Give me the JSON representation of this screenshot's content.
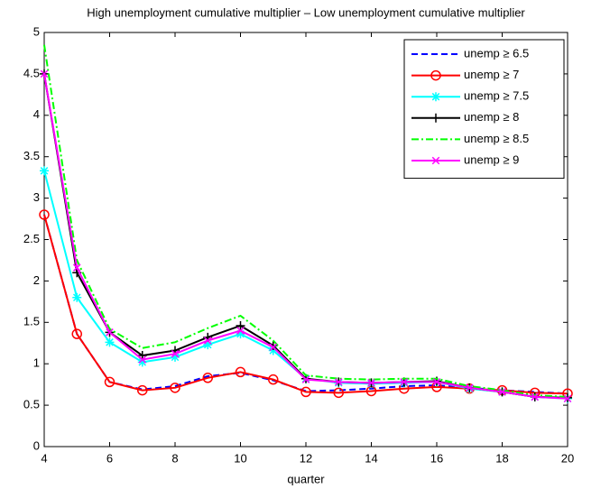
{
  "chart_data": {
    "type": "line",
    "title": "High unemployment cumulative multiplier – Low unemployment cumulative multiplier",
    "x_label": "quarter",
    "x": [
      4,
      5,
      6,
      7,
      8,
      9,
      10,
      11,
      12,
      13,
      14,
      15,
      16,
      17,
      18,
      19,
      20
    ],
    "xlim": [
      4,
      20
    ],
    "xticks": [
      4,
      6,
      8,
      10,
      12,
      14,
      16,
      18,
      20
    ],
    "ylim": [
      0,
      5
    ],
    "yticks": [
      0,
      0.5,
      1,
      1.5,
      2,
      2.5,
      3,
      3.5,
      4,
      4.5,
      5
    ],
    "legend": "upper right",
    "series": [
      {
        "name": "unemp ≥ 6.5",
        "color": "#0000ff",
        "line_style": "dashed",
        "marker": "none",
        "values": [
          2.8,
          1.36,
          0.78,
          0.69,
          0.73,
          0.85,
          0.89,
          0.8,
          0.67,
          0.68,
          0.7,
          0.73,
          0.74,
          0.71,
          0.68,
          0.66,
          0.64
        ]
      },
      {
        "name": "unemp ≥ 7",
        "color": "#ff0000",
        "line_style": "solid",
        "marker": "circle",
        "values": [
          2.8,
          1.36,
          0.78,
          0.68,
          0.71,
          0.83,
          0.9,
          0.81,
          0.66,
          0.65,
          0.67,
          0.7,
          0.72,
          0.7,
          0.68,
          0.65,
          0.64
        ]
      },
      {
        "name": "unemp ≥ 7.5",
        "color": "#00ffff",
        "line_style": "solid",
        "marker": "asterisk",
        "values": [
          3.33,
          1.8,
          1.26,
          1.02,
          1.08,
          1.23,
          1.36,
          1.16,
          0.82,
          0.77,
          0.76,
          0.77,
          0.78,
          0.7,
          0.66,
          0.6,
          0.58
        ]
      },
      {
        "name": "unemp ≥ 8",
        "color": "#000000",
        "line_style": "solid",
        "marker": "plus",
        "values": [
          4.5,
          2.1,
          1.38,
          1.1,
          1.16,
          1.32,
          1.46,
          1.22,
          0.82,
          0.78,
          0.77,
          0.78,
          0.79,
          0.71,
          0.66,
          0.6,
          0.59
        ]
      },
      {
        "name": "unemp ≥ 8.5",
        "color": "#00ff00",
        "line_style": "dashdot",
        "marker": "none",
        "values": [
          4.85,
          2.25,
          1.42,
          1.19,
          1.26,
          1.43,
          1.58,
          1.28,
          0.86,
          0.82,
          0.81,
          0.82,
          0.82,
          0.73,
          0.68,
          0.62,
          0.6
        ]
      },
      {
        "name": "unemp ≥ 9",
        "color": "#ff00ff",
        "line_style": "solid",
        "marker": "x",
        "values": [
          4.5,
          2.16,
          1.38,
          1.05,
          1.12,
          1.28,
          1.4,
          1.2,
          0.81,
          0.78,
          0.77,
          0.78,
          0.78,
          0.71,
          0.66,
          0.6,
          0.58
        ]
      }
    ]
  }
}
